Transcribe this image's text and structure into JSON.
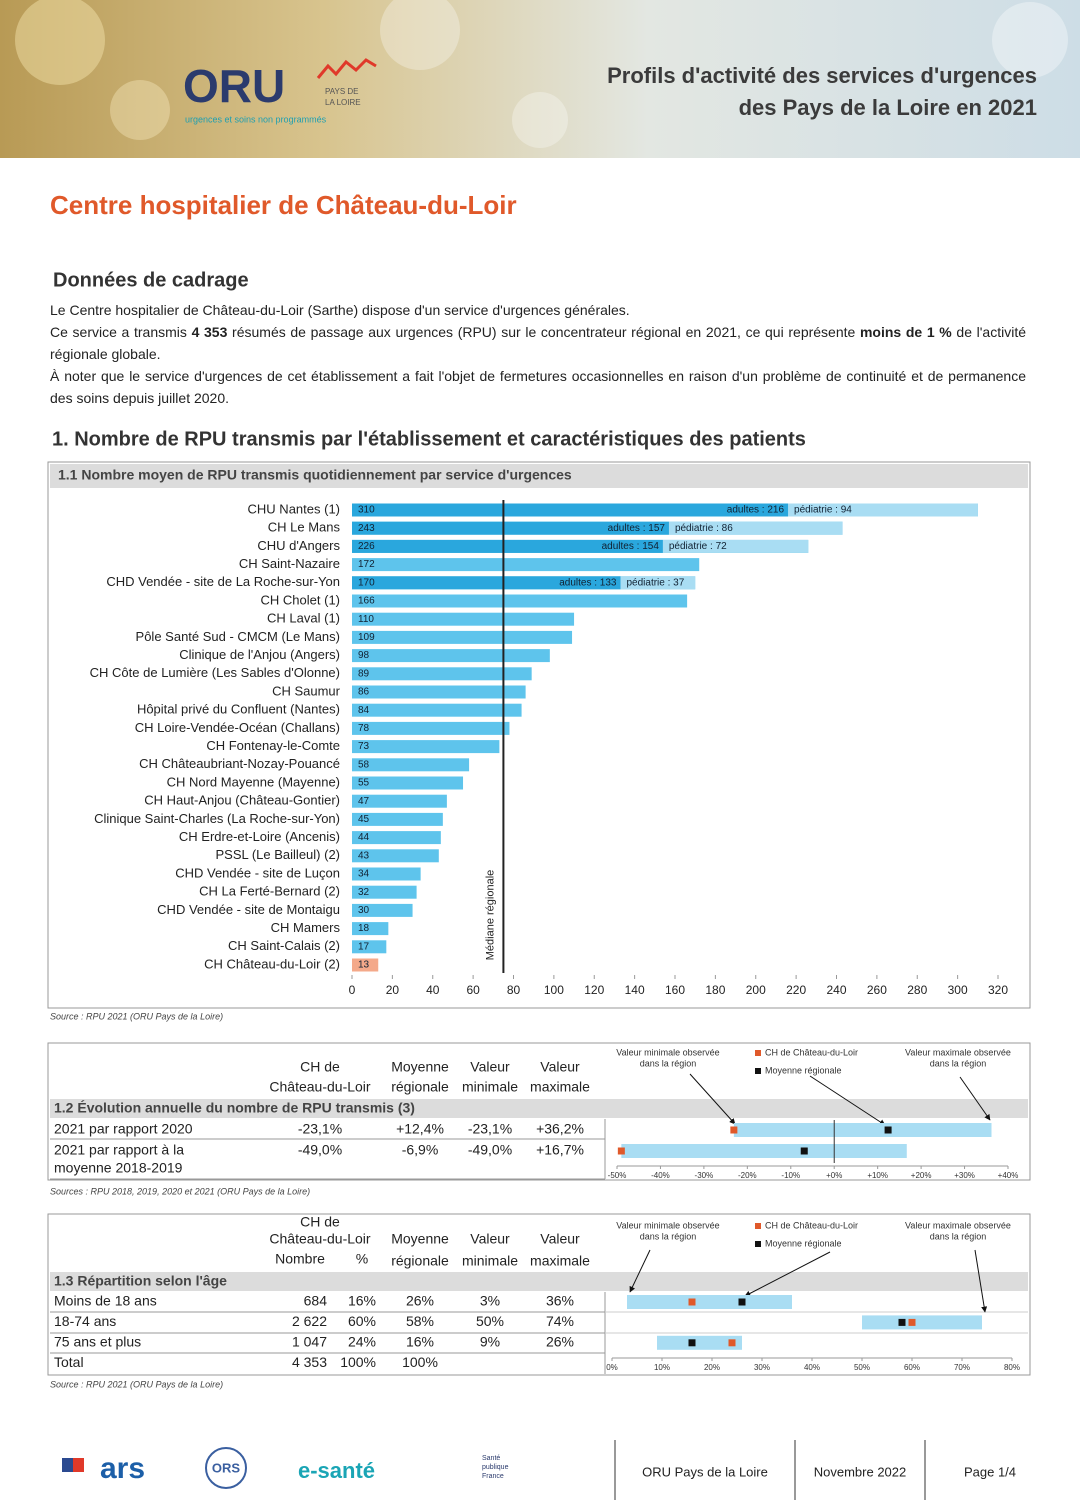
{
  "header": {
    "logo": "ORU",
    "logo_region": [
      "PAYS DE",
      "LA LOIRE"
    ],
    "logo_tagline": "urgences et soins non programmés",
    "title": [
      "Profils d'activité des services d'urgences",
      "des Pays de la Loire en 2021"
    ]
  },
  "page_title": "Centre hospitalier de Château-du-Loir",
  "intro": {
    "heading": "Données de cadrage",
    "paragraphs": [
      [
        {
          "text": "Le Centre hospitalier de Château-du-Loir (Sarthe) dispose d'un service d'urgences générales.",
          "bold": false
        }
      ],
      [
        {
          "text": "Ce service a transmis ",
          "bold": false
        },
        {
          "text": "4 353",
          "bold": true
        },
        {
          "text": " résumés de passage aux urgences (RPU) sur le concentrateur régional en 2021, ce qui représente ",
          "bold": false
        },
        {
          "text": "moins de 1 %",
          "bold": true
        },
        {
          "text": " de l'activité régionale globale.",
          "bold": false
        }
      ],
      [
        {
          "text": "À noter que le service d'urgences de cet établissement a fait l'objet de fermetures occasionnelles en raison d'un problème de continuité et de permanence des soins depuis juillet 2020.",
          "bold": false
        }
      ]
    ]
  },
  "section_heading": "1. Nombre de RPU transmis par l'établissement et caractéristiques des patients",
  "chart_data": {
    "type": "bar",
    "orientation": "horizontal",
    "title": "1.1 Nombre moyen de RPU transmis quotidiennement par service d'urgences",
    "categories": [
      "CHU Nantes (1)",
      "CH Le Mans",
      "CHU d'Angers",
      "CH Saint-Nazaire",
      "CHD Vendée - site de La Roche-sur-Yon",
      "CH Cholet (1)",
      "CH Laval (1)",
      "Pôle Santé Sud - CMCM (Le Mans)",
      "Clinique de l'Anjou (Angers)",
      "CH Côte de Lumière (Les Sables d'Olonne)",
      "CH Saumur",
      "Hôpital privé du Confluent (Nantes)",
      "CH Loire-Vendée-Océan (Challans)",
      "CH Fontenay-le-Comte",
      "CH Châteaubriant-Nozay-Pouancé",
      "CH Nord Mayenne (Mayenne)",
      "CH Haut-Anjou (Château-Gontier)",
      "Clinique Saint-Charles (La Roche-sur-Yon)",
      "CH Erdre-et-Loire (Ancenis)",
      "PSSL (Le Bailleul) (2)",
      "CHD Vendée - site de Luçon",
      "CH La Ferté-Bernard (2)",
      "CHD Vendée - site de Montaigu",
      "CH Mamers",
      "CH Saint-Calais (2)",
      "CH Château-du-Loir (2)"
    ],
    "values": [
      310,
      243,
      226,
      172,
      170,
      166,
      110,
      109,
      98,
      89,
      86,
      84,
      78,
      73,
      58,
      55,
      47,
      45,
      44,
      43,
      34,
      32,
      30,
      18,
      17,
      13
    ],
    "color": "#5ec4ec",
    "highlight": {
      "category": "CH Château-du-Loir (2)",
      "color": "#f4a98a"
    },
    "segments": [
      {
        "color": "#2aa7dd",
        "values": [
          216,
          157,
          154,
          null,
          133,
          null,
          null,
          null,
          null,
          null,
          null,
          null,
          null,
          null,
          null,
          null,
          null,
          null,
          null,
          null,
          null,
          null,
          null,
          null,
          null,
          null
        ],
        "value_labels": [
          "adultes : 216",
          "adultes : 157",
          "adultes : 154",
          null,
          "adultes : 133",
          null,
          null,
          null,
          null,
          null,
          null,
          null,
          null,
          null,
          null,
          null,
          null,
          null,
          null,
          null,
          null,
          null,
          null,
          null,
          null,
          null
        ]
      },
      {
        "color": "#a9ddf3",
        "values": [
          94,
          86,
          72,
          null,
          37,
          null,
          null,
          null,
          null,
          null,
          null,
          null,
          null,
          null,
          null,
          null,
          null,
          null,
          null,
          null,
          null,
          null,
          null,
          null,
          null,
          null
        ],
        "value_labels": [
          "pédiatrie : 94",
          "pédiatrie : 86",
          "pédiatrie : 72",
          null,
          "pédiatrie : 37",
          null,
          null,
          null,
          null,
          null,
          null,
          null,
          null,
          null,
          null,
          null,
          null,
          null,
          null,
          null,
          null,
          null,
          null,
          null,
          null,
          null
        ]
      }
    ],
    "median": {
      "value": 75,
      "label": "Médiane régionale"
    },
    "xlim": [
      0,
      320
    ],
    "xticks": [
      0,
      20,
      40,
      60,
      80,
      100,
      120,
      140,
      160,
      180,
      200,
      220,
      240,
      260,
      280,
      300,
      320
    ],
    "source": "Source : RPU 2021 (ORU Pays de la Loire)"
  },
  "table_evolution": {
    "title": "1.2 Évolution annuelle du nombre de RPU transmis (3)",
    "columns": [
      [
        "CH de",
        "Château-du-Loir"
      ],
      [
        "Moyenne",
        "régionale"
      ],
      [
        "Valeur",
        "minimale"
      ],
      [
        "Valeur",
        "maximale"
      ]
    ],
    "rows": [
      {
        "label": [
          "2021 par rapport 2020"
        ],
        "values": [
          -23.1,
          12.4,
          -23.1,
          36.2
        ],
        "value_labels": [
          "-23,1%",
          "+12,4%",
          "-23,1%",
          "+36,2%"
        ]
      },
      {
        "label": [
          "2021 par rapport à la",
          "moyenne 2018-2019"
        ],
        "values": [
          -49.0,
          -6.9,
          -49.0,
          16.7
        ],
        "value_labels": [
          "-49,0%",
          "-6,9%",
          "-49,0%",
          "+16,7%"
        ]
      }
    ],
    "xlim": [
      -50,
      40
    ],
    "xticks": [
      {
        "value": -50,
        "label": "-50%"
      },
      {
        "value": -40,
        "label": "-40%"
      },
      {
        "value": -30,
        "label": "-30%"
      },
      {
        "value": -20,
        "label": "-20%"
      },
      {
        "value": -10,
        "label": "-10%"
      },
      {
        "value": 0,
        "label": "+0%"
      },
      {
        "value": 10,
        "label": "+10%"
      },
      {
        "value": 20,
        "label": "+20%"
      },
      {
        "value": 30,
        "label": "+30%"
      },
      {
        "value": 40,
        "label": "+40%"
      }
    ],
    "legend": {
      "min": [
        "Valeur minimale observée",
        "dans la région"
      ],
      "ch": "CH de Château-du-Loir",
      "mean": "Moyenne régionale",
      "max": [
        "Valeur maximale observée",
        "dans la région"
      ]
    },
    "colors": {
      "ch": "#e0592a",
      "mean": "#111111",
      "range": "#a9ddf3",
      "min_max": "#2aa7dd"
    },
    "source": "Sources : RPU 2018, 2019, 2020 et 2021 (ORU Pays de la Loire)"
  },
  "table_age": {
    "title": "1.3 Répartition selon l'âge",
    "ch_header": [
      "CH de",
      "Château-du-Loir"
    ],
    "ch_subheaders": [
      "Nombre",
      "%"
    ],
    "columns": [
      [
        "Moyenne",
        "régionale"
      ],
      [
        "Valeur",
        "minimale"
      ],
      [
        "Valeur",
        "maximale"
      ]
    ],
    "rows": [
      {
        "label": "Moins de 18 ans",
        "count": "684",
        "values": [
          16,
          26,
          3,
          36
        ],
        "value_labels": [
          "16%",
          "26%",
          "3%",
          "36%"
        ]
      },
      {
        "label": "18-74 ans",
        "count": "2 622",
        "values": [
          60,
          58,
          50,
          74
        ],
        "value_labels": [
          "60%",
          "58%",
          "50%",
          "74%"
        ]
      },
      {
        "label": "75 ans et plus",
        "count": "1 047",
        "values": [
          24,
          16,
          9,
          26
        ],
        "value_labels": [
          "24%",
          "16%",
          "9%",
          "26%"
        ]
      },
      {
        "label": "Total",
        "count": "4 353",
        "values": [
          100,
          100
        ],
        "value_labels": [
          "100%",
          "100%"
        ]
      }
    ],
    "xlim": [
      0,
      80
    ],
    "xticks": [
      {
        "value": 0,
        "label": "0%"
      },
      {
        "value": 10,
        "label": "10%"
      },
      {
        "value": 20,
        "label": "20%"
      },
      {
        "value": 30,
        "label": "30%"
      },
      {
        "value": 40,
        "label": "40%"
      },
      {
        "value": 50,
        "label": "50%"
      },
      {
        "value": 60,
        "label": "60%"
      },
      {
        "value": 70,
        "label": "70%"
      },
      {
        "value": 80,
        "label": "80%"
      }
    ],
    "legend": {
      "min": [
        "Valeur minimale observée",
        "dans la région"
      ],
      "ch": "CH de Château-du-Loir",
      "mean": "Moyenne régionale",
      "max": [
        "Valeur maximale observée",
        "dans la région"
      ]
    },
    "source": "Source : RPU 2021 (ORU Pays de la Loire)"
  },
  "footer": {
    "logos": [
      "ars",
      "ORS",
      "e-santé",
      [
        "Santé",
        "publique",
        "France"
      ]
    ],
    "organisation": "ORU Pays de la Loire",
    "date": "Novembre 2022",
    "page": "Page 1/4"
  }
}
